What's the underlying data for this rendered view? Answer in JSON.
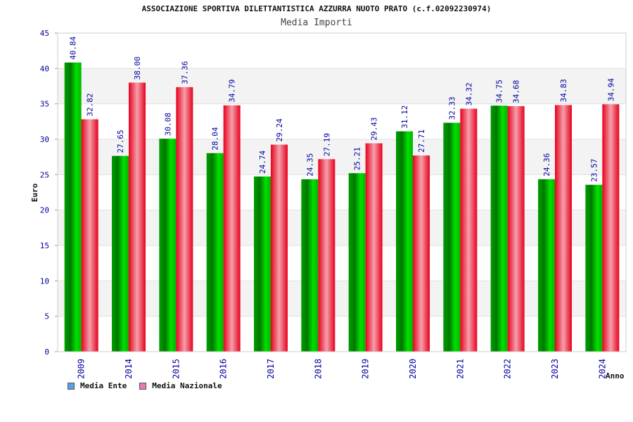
{
  "chart_data": {
    "type": "bar",
    "title": "ASSOCIAZIONE SPORTIVA DILETTANTISTICA AZZURRA NUOTO PRATO (c.f.02092230974)",
    "subtitle": "Media Importi",
    "xlabel": "Anno",
    "ylabel": "Euro",
    "ylim": [
      0,
      45
    ],
    "yticks": [
      0,
      5,
      10,
      15,
      20,
      25,
      30,
      35,
      40,
      45
    ],
    "categories": [
      "2009",
      "2014",
      "2015",
      "2016",
      "2017",
      "2018",
      "2019",
      "2020",
      "2021",
      "2022",
      "2023",
      "2024"
    ],
    "series": [
      {
        "name": "Media Ente",
        "color": "#00c800",
        "values": [
          40.84,
          27.65,
          30.08,
          28.04,
          24.74,
          24.35,
          25.21,
          31.12,
          32.33,
          34.75,
          24.36,
          23.57
        ],
        "labels": [
          "40.84",
          "27.65",
          "30.08",
          "28.04",
          "24.74",
          "24.35",
          "25.21",
          "31.12",
          "32.33",
          "34.75",
          "24.36",
          "23.57"
        ]
      },
      {
        "name": "Media Nazionale",
        "color": "#e8001c",
        "values": [
          32.82,
          38.0,
          37.36,
          34.79,
          29.24,
          27.19,
          29.43,
          27.71,
          34.32,
          34.68,
          34.83,
          34.94
        ],
        "labels": [
          "32.82",
          "38.00",
          "37.36",
          "34.79",
          "29.24",
          "27.19",
          "29.43",
          "27.71",
          "34.32",
          "34.68",
          "34.83",
          "34.94"
        ]
      }
    ],
    "legend_colors": [
      "#5aa0e8",
      "#e87ab0"
    ],
    "grid": true,
    "legend_position": "bottom-left"
  }
}
